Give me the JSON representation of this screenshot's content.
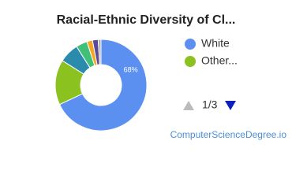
{
  "chart_data": {
    "type": "pie",
    "title": "Racial-Ethnic Diversity of Cl...",
    "categories": [
      "White",
      "Other...",
      null,
      null,
      null,
      null,
      null
    ],
    "values": [
      68,
      16,
      7,
      4,
      2,
      2,
      1
    ],
    "value_labels": [
      "68%",
      null,
      null,
      null,
      null,
      null,
      null
    ],
    "colors": [
      "#5b8ff0",
      "#8cc21f",
      "#2b8bad",
      "#3fbf78",
      "#f5a623",
      "#5a4a9a",
      "#b0b0b0"
    ],
    "page": "1/3",
    "source": "ComputerScienceDegree.io"
  }
}
